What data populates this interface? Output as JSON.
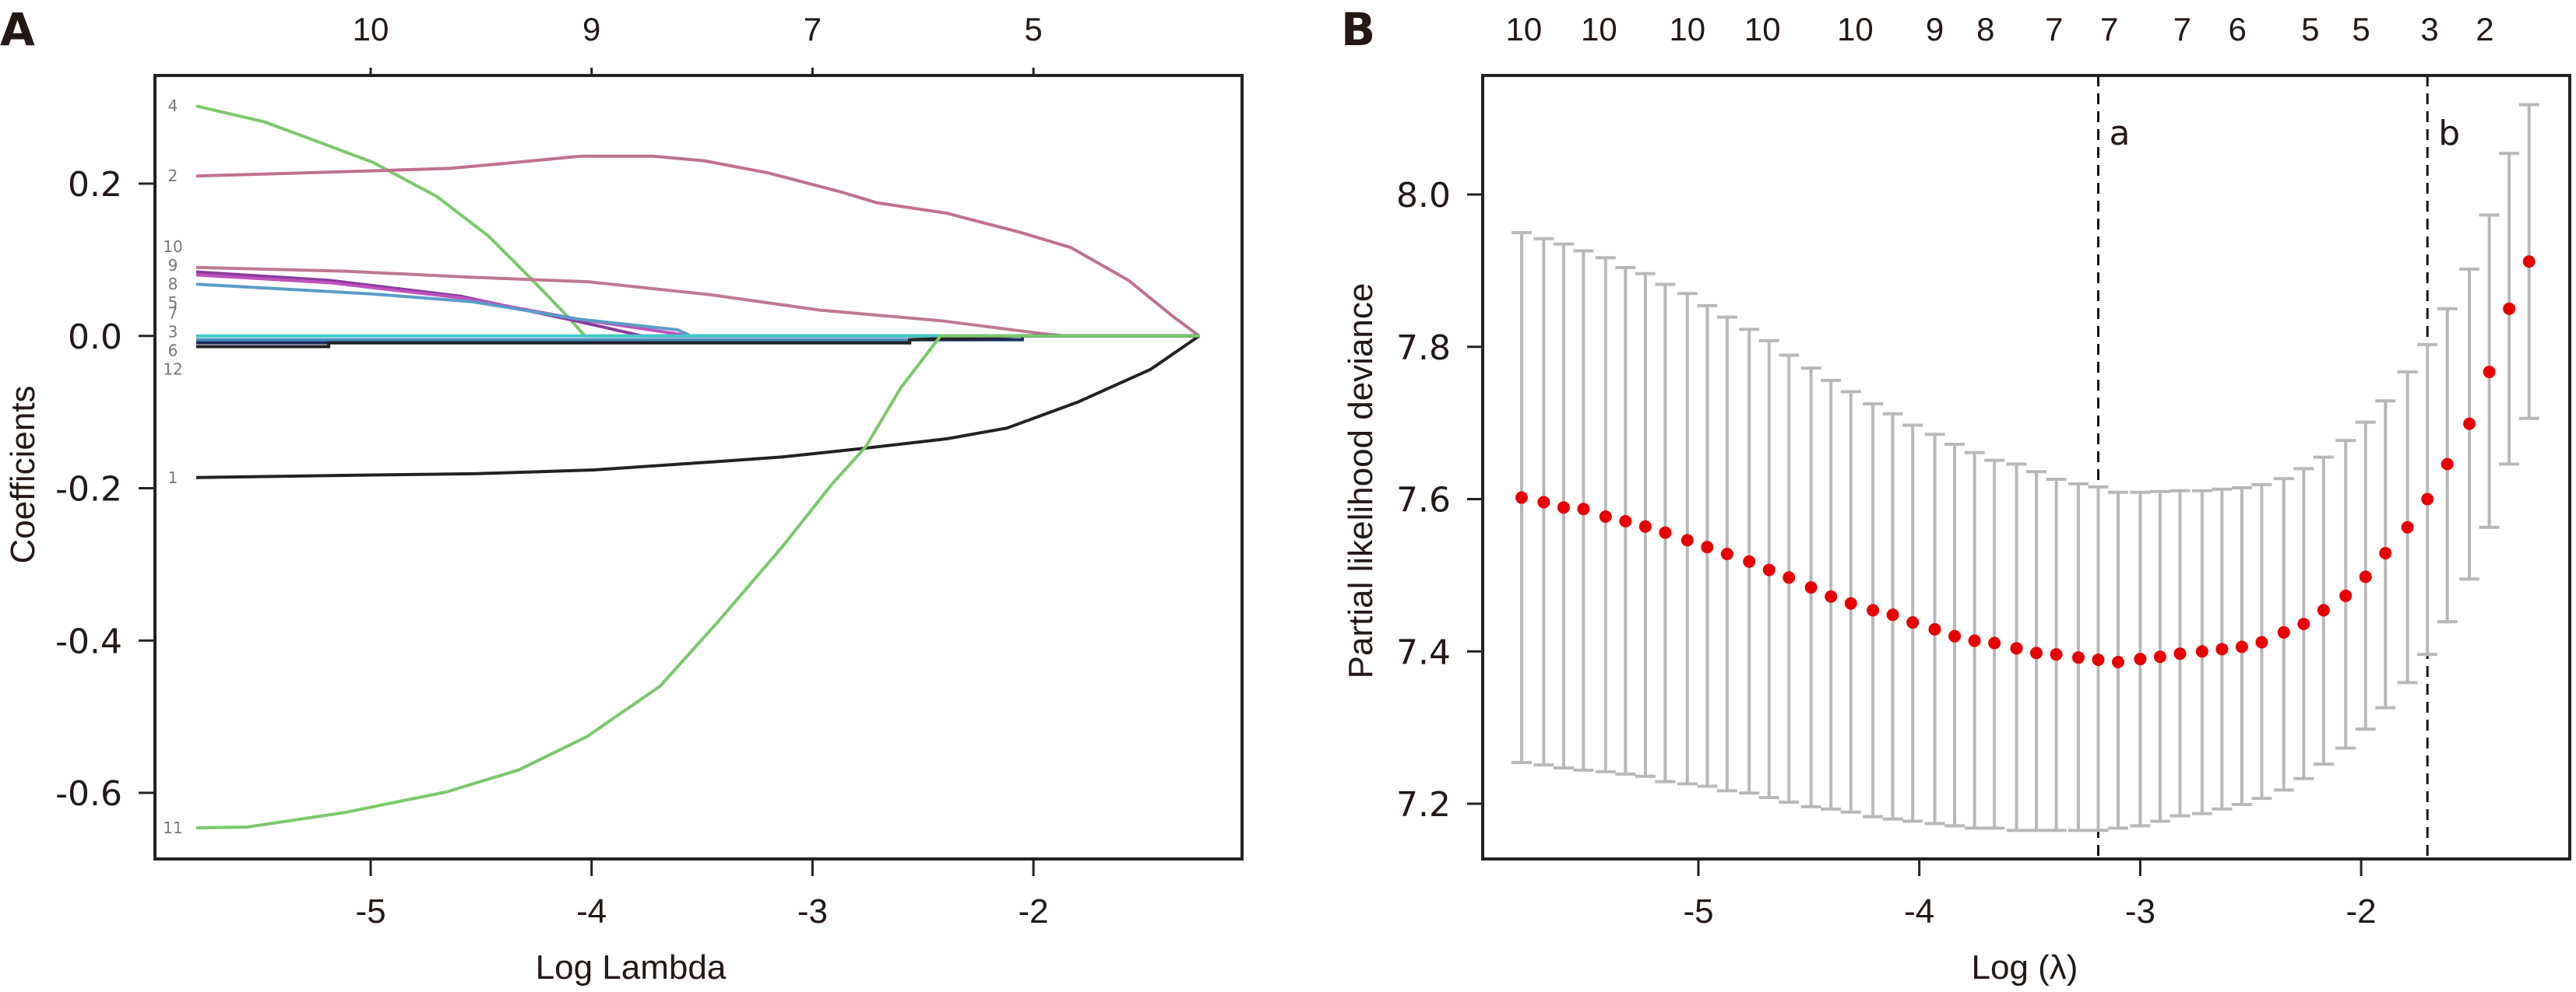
{
  "chart_data": [
    {
      "panel": "A",
      "type": "line",
      "xlabel": "Log Lambda",
      "ylabel": "Coefficients",
      "xlim": [
        -6.05,
        -1.06
      ],
      "ylim": [
        -0.683,
        0.342
      ],
      "x_ticks": [
        -5,
        -4,
        -3,
        -2
      ],
      "x_tick_labels": [
        "-5",
        "-4",
        "-3",
        "-2"
      ],
      "y_ticks": [
        0.2,
        0.0,
        -0.2,
        -0.4,
        -0.6
      ],
      "y_tick_labels": [
        "0.2",
        "0.0",
        "-0.2",
        "-0.4",
        "-0.6"
      ],
      "top_axis": {
        "x": [
          -5,
          -4,
          -3,
          -2
        ],
        "labels": [
          "10",
          "9",
          "7",
          "5"
        ]
      },
      "grid": false,
      "series": [
        {
          "name": "4",
          "color": "#7cc86c",
          "points": [
            [
              -5.79,
              0.302
            ],
            [
              -5.48,
              0.281
            ],
            [
              -5.22,
              0.253
            ],
            [
              -4.99,
              0.228
            ],
            [
              -4.7,
              0.183
            ],
            [
              -4.47,
              0.132
            ],
            [
              -4.28,
              0.077
            ],
            [
              -4.11,
              0.026
            ],
            [
              -4.03,
              0.0
            ],
            [
              -1.25,
              0.0
            ]
          ]
        },
        {
          "name": "2",
          "color": "#c07090",
          "points": [
            [
              -5.79,
              0.21
            ],
            [
              -5.19,
              0.215
            ],
            [
              -4.64,
              0.22
            ],
            [
              -4.34,
              0.228
            ],
            [
              -4.05,
              0.236
            ],
            [
              -3.72,
              0.236
            ],
            [
              -3.49,
              0.23
            ],
            [
              -3.2,
              0.214
            ],
            [
              -2.87,
              0.189
            ],
            [
              -2.71,
              0.175
            ],
            [
              -2.39,
              0.161
            ],
            [
              -2.06,
              0.136
            ],
            [
              -1.83,
              0.116
            ],
            [
              -1.57,
              0.073
            ],
            [
              -1.37,
              0.026
            ],
            [
              -1.25,
              0.0
            ]
          ]
        },
        {
          "name": "10",
          "color": "#c07890",
          "points": [
            [
              -5.79,
              0.09
            ],
            [
              -5.11,
              0.085
            ],
            [
              -4.54,
              0.077
            ],
            [
              -4.01,
              0.071
            ],
            [
              -3.46,
              0.054
            ],
            [
              -2.97,
              0.034
            ],
            [
              -2.42,
              0.02
            ],
            [
              -1.96,
              0.003
            ],
            [
              -1.86,
              0.0
            ],
            [
              -1.25,
              0.0
            ]
          ]
        },
        {
          "name": "9",
          "color": "#8a3c9c",
          "points": [
            [
              -5.79,
              0.084
            ],
            [
              -5.19,
              0.073
            ],
            [
              -4.59,
              0.052
            ],
            [
              -4.06,
              0.019
            ],
            [
              -3.77,
              0.0
            ],
            [
              -1.25,
              0.0
            ]
          ]
        },
        {
          "name": "8",
          "color": "#c050c0",
          "points": [
            [
              -5.79,
              0.08
            ],
            [
              -5.19,
              0.07
            ],
            [
              -4.59,
              0.05
            ],
            [
              -4.06,
              0.022
            ],
            [
              -3.55,
              0.0
            ],
            [
              -1.25,
              0.0
            ]
          ]
        },
        {
          "name": "5",
          "color": "#5a9cc8",
          "points": [
            [
              -5.79,
              0.068
            ],
            [
              -4.99,
              0.055
            ],
            [
              -4.54,
              0.045
            ],
            [
              -4.06,
              0.022
            ],
            [
              -3.61,
              0.008
            ],
            [
              -3.55,
              0.0
            ],
            [
              -1.25,
              0.0
            ]
          ]
        },
        {
          "name": "7",
          "color": "#40c8c8",
          "points": [
            [
              -5.79,
              0.0
            ],
            [
              -1.25,
              0.0
            ]
          ]
        },
        {
          "name": "3",
          "color": "#4a8cc0",
          "points": [
            [
              -5.79,
              -0.005
            ],
            [
              -2.26,
              -0.005
            ],
            [
              -2.26,
              0.0
            ],
            [
              -1.25,
              0.0
            ]
          ]
        },
        {
          "name": "6",
          "color": "#1a2a5a",
          "points": [
            [
              -5.79,
              -0.009
            ],
            [
              -2.56,
              -0.009
            ],
            [
              -2.56,
              -0.005
            ],
            [
              -2.05,
              -0.005
            ],
            [
              -2.05,
              0.0
            ],
            [
              -1.25,
              0.0
            ]
          ]
        },
        {
          "name": "12",
          "color": "#222222",
          "points": [
            [
              -5.79,
              -0.014
            ],
            [
              -5.19,
              -0.014
            ],
            [
              -5.19,
              -0.009
            ],
            [
              -2.56,
              -0.009
            ],
            [
              -2.56,
              -0.005
            ],
            [
              -2.05,
              0.0
            ],
            [
              -1.25,
              0.0
            ]
          ]
        },
        {
          "name": "1",
          "color": "#222222",
          "points": [
            [
              -5.79,
              -0.186
            ],
            [
              -5.09,
              -0.183
            ],
            [
              -4.53,
              -0.181
            ],
            [
              -3.99,
              -0.176
            ],
            [
              -3.43,
              -0.165
            ],
            [
              -3.14,
              -0.159
            ],
            [
              -2.78,
              -0.148
            ],
            [
              -2.39,
              -0.135
            ],
            [
              -2.12,
              -0.121
            ],
            [
              -1.8,
              -0.087
            ],
            [
              -1.47,
              -0.044
            ],
            [
              -1.25,
              0.0
            ]
          ]
        },
        {
          "name": "11",
          "color": "#7cc86c",
          "points": [
            [
              -5.79,
              -0.646
            ],
            [
              -5.56,
              -0.645
            ],
            [
              -5.12,
              -0.626
            ],
            [
              -4.66,
              -0.599
            ],
            [
              -4.33,
              -0.57
            ],
            [
              -4.02,
              -0.526
            ],
            [
              -3.69,
              -0.46
            ],
            [
              -3.43,
              -0.376
            ],
            [
              -3.14,
              -0.278
            ],
            [
              -2.91,
              -0.194
            ],
            [
              -2.76,
              -0.146
            ],
            [
              -2.6,
              -0.068
            ],
            [
              -2.42,
              0.0
            ],
            [
              -1.25,
              0.0
            ]
          ]
        }
      ]
    },
    {
      "panel": "B",
      "type": "scatter",
      "xlabel": "Log (λ)",
      "ylabel": "Partial likelihood deviance",
      "xlim": [
        -5.97,
        -1.06
      ],
      "ylim": [
        7.126,
        8.154
      ],
      "x_ticks": [
        -5,
        -4,
        -3,
        -2
      ],
      "x_tick_labels": [
        "-5",
        "-4",
        "-3",
        "-2"
      ],
      "y_ticks": [
        8.0,
        7.8,
        7.6,
        7.4,
        7.2
      ],
      "y_tick_labels": [
        "8.0",
        "7.8",
        "7.6",
        "7.4",
        "7.2"
      ],
      "top_axis": {
        "x": [
          -5.79,
          -5.45,
          -5.05,
          -4.71,
          -4.29,
          -3.93,
          -3.7,
          -3.39,
          -3.14,
          -2.81,
          -2.56,
          -2.23,
          -2.0,
          -1.69,
          -1.44
        ],
        "labels": [
          "10",
          "10",
          "10",
          "10",
          "10",
          "9",
          "8",
          "7",
          "7",
          "7",
          "6",
          "5",
          "5",
          "3",
          "2"
        ]
      },
      "grid": false,
      "point_color": "#e60000",
      "errorbar_color": "#b8b8b8",
      "vlines": [
        {
          "x": -3.19,
          "label": "a"
        },
        {
          "x": -1.7,
          "label": "b"
        }
      ],
      "x": [
        -5.8,
        -5.7,
        -5.61,
        -5.52,
        -5.42,
        -5.33,
        -5.24,
        -5.15,
        -5.05,
        -4.96,
        -4.87,
        -4.77,
        -4.68,
        -4.59,
        -4.49,
        -4.4,
        -4.31,
        -4.21,
        -4.12,
        -4.03,
        -3.93,
        -3.84,
        -3.75,
        -3.66,
        -3.56,
        -3.47,
        -3.38,
        -3.28,
        -3.19,
        -3.1,
        -3.0,
        -2.91,
        -2.82,
        -2.72,
        -2.63,
        -2.54,
        -2.45,
        -2.35,
        -2.26,
        -2.17,
        -2.07,
        -1.98,
        -1.89,
        -1.79,
        -1.7,
        -1.61,
        -1.51,
        -1.42,
        -1.33,
        -1.24
      ],
      "mean": [
        7.602,
        7.596,
        7.589,
        7.587,
        7.577,
        7.571,
        7.564,
        7.556,
        7.546,
        7.537,
        7.528,
        7.518,
        7.507,
        7.497,
        7.484,
        7.472,
        7.463,
        7.454,
        7.448,
        7.438,
        7.429,
        7.42,
        7.414,
        7.411,
        7.404,
        7.398,
        7.396,
        7.392,
        7.389,
        7.386,
        7.39,
        7.393,
        7.397,
        7.4,
        7.403,
        7.406,
        7.412,
        7.425,
        7.436,
        7.454,
        7.473,
        7.498,
        7.529,
        7.563,
        7.6,
        7.646,
        7.699,
        7.767,
        7.85,
        7.912
      ],
      "upper": [
        7.95,
        7.942,
        7.935,
        7.926,
        7.917,
        7.904,
        7.896,
        7.882,
        7.87,
        7.854,
        7.839,
        7.823,
        7.808,
        7.789,
        7.772,
        7.756,
        7.741,
        7.725,
        7.712,
        7.697,
        7.685,
        7.672,
        7.661,
        7.651,
        7.646,
        7.636,
        7.626,
        7.62,
        7.616,
        7.609,
        7.609,
        7.61,
        7.611,
        7.611,
        7.613,
        7.615,
        7.619,
        7.627,
        7.64,
        7.655,
        7.677,
        7.701,
        7.729,
        7.767,
        7.803,
        7.85,
        7.902,
        7.973,
        8.054,
        8.118
      ],
      "lower": [
        7.254,
        7.251,
        7.247,
        7.244,
        7.242,
        7.239,
        7.236,
        7.229,
        7.226,
        7.223,
        7.217,
        7.214,
        7.208,
        7.202,
        7.196,
        7.193,
        7.189,
        7.183,
        7.18,
        7.177,
        7.174,
        7.171,
        7.168,
        7.168,
        7.165,
        7.165,
        7.165,
        7.165,
        7.165,
        7.168,
        7.171,
        7.177,
        7.184,
        7.187,
        7.193,
        7.199,
        7.207,
        7.218,
        7.233,
        7.252,
        7.273,
        7.298,
        7.326,
        7.359,
        7.396,
        7.439,
        7.495,
        7.563,
        7.646,
        7.706
      ]
    }
  ]
}
